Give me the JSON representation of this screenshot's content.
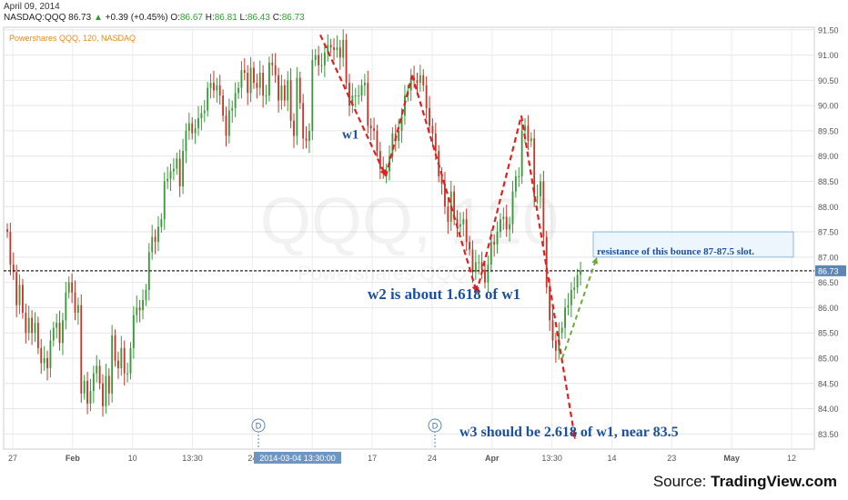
{
  "header": {
    "date": "April 09, 2014",
    "symbol": "NASDAQ:QQQ",
    "last": "86.73",
    "change": "+0.39 (+0.45%)",
    "open_label": "O:",
    "open": "86.67",
    "high_label": "H:",
    "high": "86.81",
    "low_label": "L:",
    "low": "86.43",
    "close_label": "C:",
    "close": "86.73",
    "series_title": "Powershares QQQ, 120, NASDAQ"
  },
  "watermark": {
    "symbol": "QQQ, 120",
    "name": "Powershares QQQ"
  },
  "source": {
    "prefix": "Source: ",
    "brand": "TradingView.com"
  },
  "colors": {
    "up": "#3a9a3a",
    "down": "#c0392b",
    "wave": "#e02020",
    "projection": "#6aaa3a",
    "annotation_text": "#1b4fa0",
    "last_price_tag": "#5b86b5",
    "date_tag": "#6f96c3"
  },
  "chart_data": {
    "type": "candlestick",
    "title": "Powershares QQQ, 120, NASDAQ",
    "interval": "120",
    "ylim": [
      83.2,
      91.55
    ],
    "y_ticks": [
      "83.50",
      "84.00",
      "84.50",
      "85.00",
      "85.50",
      "86.00",
      "86.50",
      "87.00",
      "87.50",
      "88.00",
      "88.50",
      "89.00",
      "89.50",
      "90.00",
      "90.50",
      "91.00",
      "91.50"
    ],
    "x_tick_labels": [
      "27",
      "Feb",
      "10",
      "13:30",
      "24",
      "13:30",
      "17",
      "24",
      "Apr",
      "13:30",
      "14",
      "23",
      "May",
      "12"
    ],
    "date_marker": "2014-03-04 13:30:00",
    "event_markers": [
      "D",
      "D"
    ],
    "last_price": 86.73,
    "last_price_label": "86.73",
    "wave_path": [
      91.4,
      88.6,
      90.6,
      86.3,
      89.8,
      83.4
    ],
    "projection": {
      "from": 85.0,
      "to": 87.0
    },
    "resistance_range": [
      87.0,
      87.5
    ],
    "candle_closes": [
      87.5,
      86.85,
      86.7,
      86.05,
      86.45,
      85.9,
      85.5,
      85.8,
      85.5,
      85.7,
      85.2,
      84.9,
      85.0,
      84.8,
      85.35,
      85.6,
      85.7,
      85.3,
      85.75,
      86.3,
      86.5,
      86.3,
      85.9,
      86.05,
      84.3,
      84.55,
      84.1,
      84.35,
      84.7,
      84.85,
      84.5,
      84.05,
      84.65,
      84.3,
      85.45,
      84.95,
      84.8,
      85.2,
      84.7,
      84.7,
      85.2,
      85.85,
      86.0,
      85.95,
      86.15,
      86.35,
      87.1,
      87.4,
      87.3,
      87.6,
      87.75,
      88.5,
      88.55,
      88.7,
      88.75,
      88.95,
      88.4,
      89.1,
      89.5,
      89.65,
      89.45,
      89.55,
      89.75,
      89.85,
      89.9,
      90.35,
      90.45,
      90.3,
      90.4,
      90.2,
      89.8,
      89.4,
      89.9,
      89.95,
      90.25,
      90.35,
      90.7,
      90.65,
      90.25,
      90.75,
      90.45,
      90.35,
      90.65,
      90.2,
      90.2,
      90.85,
      90.8,
      90.6,
      90.1,
      90.4,
      90.1,
      90.5,
      89.7,
      89.4,
      90.55,
      90.05,
      89.35,
      89.3,
      89.5,
      90.9,
      91.0,
      90.8,
      90.8,
      91.05,
      91.2,
      91.15,
      91.1,
      91.15,
      90.95,
      91.3,
      90.45,
      90.0,
      90.2,
      90.2,
      90.2,
      90.4,
      90.45,
      89.6,
      89.55,
      89.5,
      89.1,
      88.75,
      88.7,
      88.7,
      89.0,
      89.45,
      89.3,
      89.5,
      89.8,
      90.2,
      90.3,
      90.55,
      90.5,
      90.45,
      90.6,
      90.4,
      89.95,
      89.6,
      89.45,
      89.1,
      88.6,
      88.45,
      88.0,
      87.7,
      88.3,
      87.75,
      87.6,
      87.65,
      87.75,
      87.3,
      87.15,
      86.7,
      86.9,
      86.9,
      86.75,
      86.5,
      86.85,
      87.3,
      87.25,
      87.5,
      87.75,
      87.8,
      87.55,
      87.65,
      88.3,
      88.6,
      88.6,
      89.5,
      89.6,
      89.3,
      89.35,
      88.2,
      88.2,
      88.5,
      87.4,
      86.4,
      85.75,
      85.35,
      85.15,
      85.5,
      85.6,
      86.0,
      86.05,
      86.35,
      86.4,
      86.65,
      86.73
    ]
  },
  "annotations": {
    "w1": "w1",
    "w2": "w2 is about 1.618 of w1",
    "w3": "w3 should be 2.618 of w1, near 83.5",
    "resistance": "resistance of this bounce 87-87.5 slot."
  }
}
